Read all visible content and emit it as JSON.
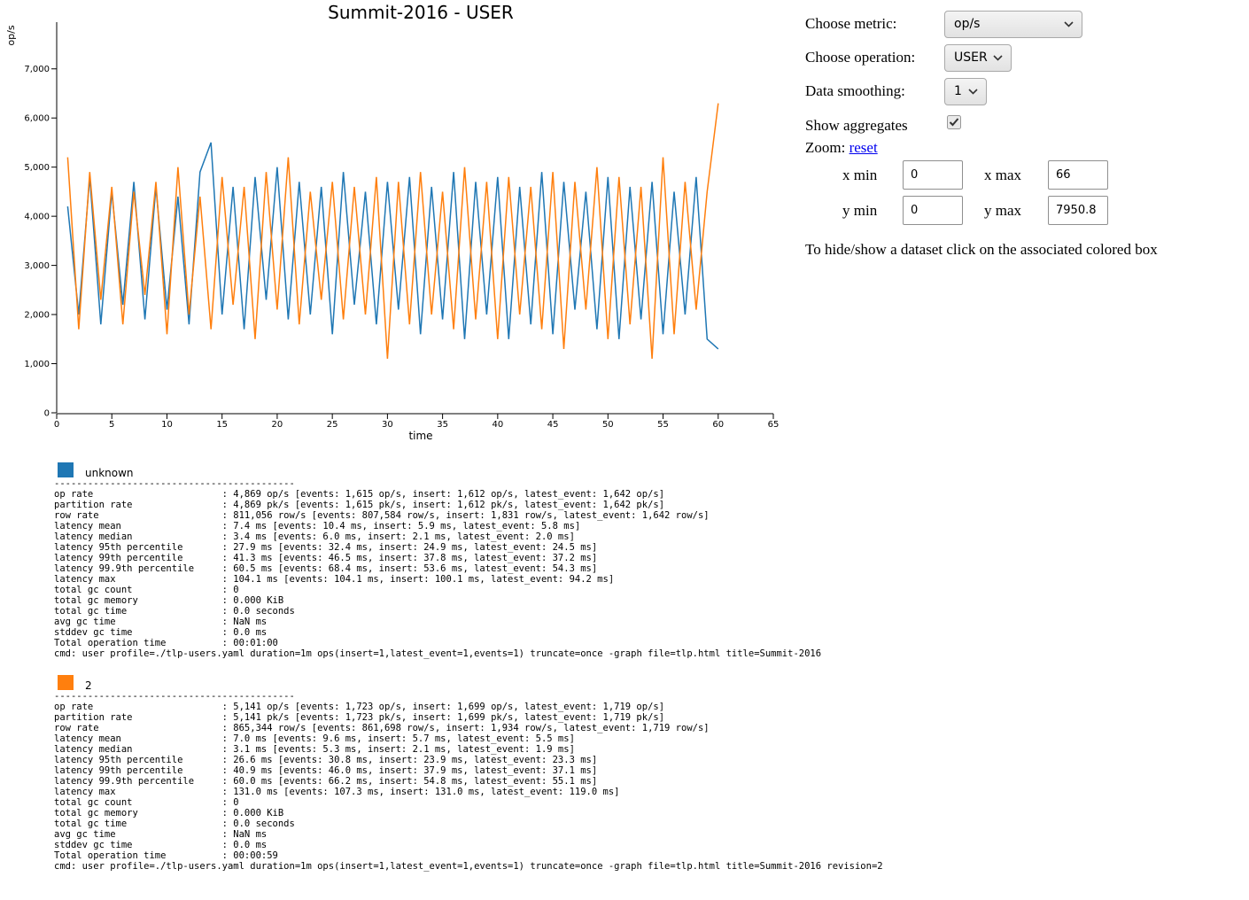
{
  "chart_data": {
    "type": "line",
    "title": "Summit-2016 - USER",
    "xlabel": "time",
    "ylabel": "op/s",
    "xlim": [
      0,
      65
    ],
    "xticks": [
      0,
      5,
      10,
      15,
      20,
      25,
      30,
      35,
      40,
      45,
      50,
      55,
      60,
      65
    ],
    "ylim": [
      0,
      7950.8
    ],
    "yticks": [
      0,
      {
        "value": 1000,
        "label": "1,000"
      },
      {
        "value": 2000,
        "label": "2,000"
      },
      {
        "value": 3000,
        "label": "3,000"
      },
      {
        "value": 4000,
        "label": "4,000"
      },
      {
        "value": 5000,
        "label": "5,000"
      },
      {
        "value": 6000,
        "label": "6,000"
      },
      {
        "value": 7000,
        "label": "7,000"
      }
    ],
    "x": [
      1,
      2,
      3,
      4,
      5,
      6,
      7,
      8,
      9,
      10,
      11,
      12,
      13,
      14,
      15,
      16,
      17,
      18,
      19,
      20,
      21,
      22,
      23,
      24,
      25,
      26,
      27,
      28,
      29,
      30,
      31,
      32,
      33,
      34,
      35,
      36,
      37,
      38,
      39,
      40,
      41,
      42,
      43,
      44,
      45,
      46,
      47,
      48,
      49,
      50,
      51,
      52,
      53,
      54,
      55,
      56,
      57,
      58,
      59,
      60
    ],
    "series": [
      {
        "name": "unknown",
        "color": "#1f77b4",
        "values": [
          4200,
          2000,
          4800,
          1800,
          4500,
          2200,
          4700,
          1900,
          4600,
          2100,
          4400,
          1800,
          4900,
          5500,
          2000,
          4600,
          1700,
          4800,
          2300,
          5000,
          1900,
          4700,
          2000,
          4600,
          1600,
          4900,
          2200,
          4500,
          1800,
          4700,
          2100,
          4800,
          1600,
          4600,
          1900,
          4900,
          1500,
          4700,
          2000,
          4800,
          1500,
          4600,
          1800,
          4900,
          1600,
          4700,
          2100,
          4500,
          1700,
          4800,
          1500,
          4600,
          1900,
          4700,
          1600,
          4500,
          2000,
          4800,
          1500,
          1300
        ]
      },
      {
        "name": "2",
        "color": "#ff7f0e",
        "values": [
          5200,
          1700,
          4900,
          2300,
          4600,
          1800,
          4500,
          2400,
          4700,
          1600,
          5000,
          2000,
          4400,
          1700,
          4800,
          2200,
          4600,
          1500,
          4900,
          2100,
          5200,
          1800,
          4500,
          2300,
          4700,
          1900,
          4600,
          2000,
          4800,
          1100,
          4700,
          1800,
          4900,
          2000,
          4500,
          1700,
          5000,
          1900,
          4700,
          1500,
          4800,
          2000,
          4600,
          1700,
          4900,
          1300,
          4700,
          2100,
          5000,
          1500,
          4800,
          1800,
          4600,
          1100,
          5200,
          1600,
          4700,
          2100,
          4500,
          6300
        ]
      }
    ]
  },
  "controls": {
    "metric_label": "Choose metric:",
    "metric": "op/s",
    "operation_label": "Choose operation:",
    "operation": "USER",
    "smoothing_label": "Data smoothing:",
    "smoothing": "1",
    "aggregates_label": "Show aggregates",
    "zoom_label": "Zoom:",
    "zoom_reset": "reset",
    "xmin_label": "x min",
    "xmin": "0",
    "xmax_label": "x max",
    "xmax": "66",
    "ymin_label": "y min",
    "ymin": "0",
    "ymax_label": "y max",
    "ymax": "7950.8",
    "hint": "To hide/show a dataset click on the associated colored box"
  },
  "stats": [
    {
      "separator": "-------------------------------------------",
      "rows": [
        [
          "op rate",
          ": 4,869 op/s [events: 1,615 op/s, insert: 1,612 op/s, latest_event: 1,642 op/s]"
        ],
        [
          "partition rate",
          ": 4,869 pk/s [events: 1,615 pk/s, insert: 1,612 pk/s, latest_event: 1,642 pk/s]"
        ],
        [
          "row rate",
          ": 811,056 row/s [events: 807,584 row/s, insert: 1,831 row/s, latest_event: 1,642 row/s]"
        ],
        [
          "latency mean",
          ": 7.4 ms [events: 10.4 ms, insert: 5.9 ms, latest_event: 5.8 ms]"
        ],
        [
          "latency median",
          ": 3.4 ms [events: 6.0 ms, insert: 2.1 ms, latest_event: 2.0 ms]"
        ],
        [
          "latency 95th percentile",
          ": 27.9 ms [events: 32.4 ms, insert: 24.9 ms, latest_event: 24.5 ms]"
        ],
        [
          "latency 99th percentile",
          ": 41.3 ms [events: 46.5 ms, insert: 37.8 ms, latest_event: 37.2 ms]"
        ],
        [
          "latency 99.9th percentile",
          ": 60.5 ms [events: 68.4 ms, insert: 53.6 ms, latest_event: 54.3 ms]"
        ],
        [
          "latency max",
          ": 104.1 ms [events: 104.1 ms, insert: 100.1 ms, latest_event: 94.2 ms]"
        ],
        [
          "total gc count",
          ": 0"
        ],
        [
          "total gc memory",
          ": 0.000 KiB"
        ],
        [
          "total gc time",
          ": 0.0 seconds"
        ],
        [
          "avg gc time",
          ": NaN ms"
        ],
        [
          "stddev gc time",
          ": 0.0 ms"
        ],
        [
          "Total operation time",
          ": 00:01:00"
        ]
      ],
      "cmd": "cmd: user profile=./tlp-users.yaml duration=1m ops(insert=1,latest_event=1,events=1) truncate=once -graph file=tlp.html title=Summit-2016"
    },
    {
      "separator": "-------------------------------------------",
      "rows": [
        [
          "op rate",
          ": 5,141 op/s [events: 1,723 op/s, insert: 1,699 op/s, latest_event: 1,719 op/s]"
        ],
        [
          "partition rate",
          ": 5,141 pk/s [events: 1,723 pk/s, insert: 1,699 pk/s, latest_event: 1,719 pk/s]"
        ],
        [
          "row rate",
          ": 865,344 row/s [events: 861,698 row/s, insert: 1,934 row/s, latest_event: 1,719 row/s]"
        ],
        [
          "latency mean",
          ": 7.0 ms [events: 9.6 ms, insert: 5.7 ms, latest_event: 5.5 ms]"
        ],
        [
          "latency median",
          ": 3.1 ms [events: 5.3 ms, insert: 2.1 ms, latest_event: 1.9 ms]"
        ],
        [
          "latency 95th percentile",
          ": 26.6 ms [events: 30.8 ms, insert: 23.9 ms, latest_event: 23.3 ms]"
        ],
        [
          "latency 99th percentile",
          ": 40.9 ms [events: 46.0 ms, insert: 37.9 ms, latest_event: 37.1 ms]"
        ],
        [
          "latency 99.9th percentile",
          ": 60.0 ms [events: 66.2 ms, insert: 54.8 ms, latest_event: 55.1 ms]"
        ],
        [
          "latency max",
          ": 131.0 ms [events: 107.3 ms, insert: 131.0 ms, latest_event: 119.0 ms]"
        ],
        [
          "total gc count",
          ": 0"
        ],
        [
          "total gc memory",
          ": 0.000 KiB"
        ],
        [
          "total gc time",
          ": 0.0 seconds"
        ],
        [
          "avg gc time",
          ": NaN ms"
        ],
        [
          "stddev gc time",
          ": 0.0 ms"
        ],
        [
          "Total operation time",
          ": 00:00:59"
        ]
      ],
      "cmd": "cmd: user profile=./tlp-users.yaml duration=1m ops(insert=1,latest_event=1,events=1) truncate=once -graph file=tlp.html title=Summit-2016 revision=2"
    }
  ]
}
